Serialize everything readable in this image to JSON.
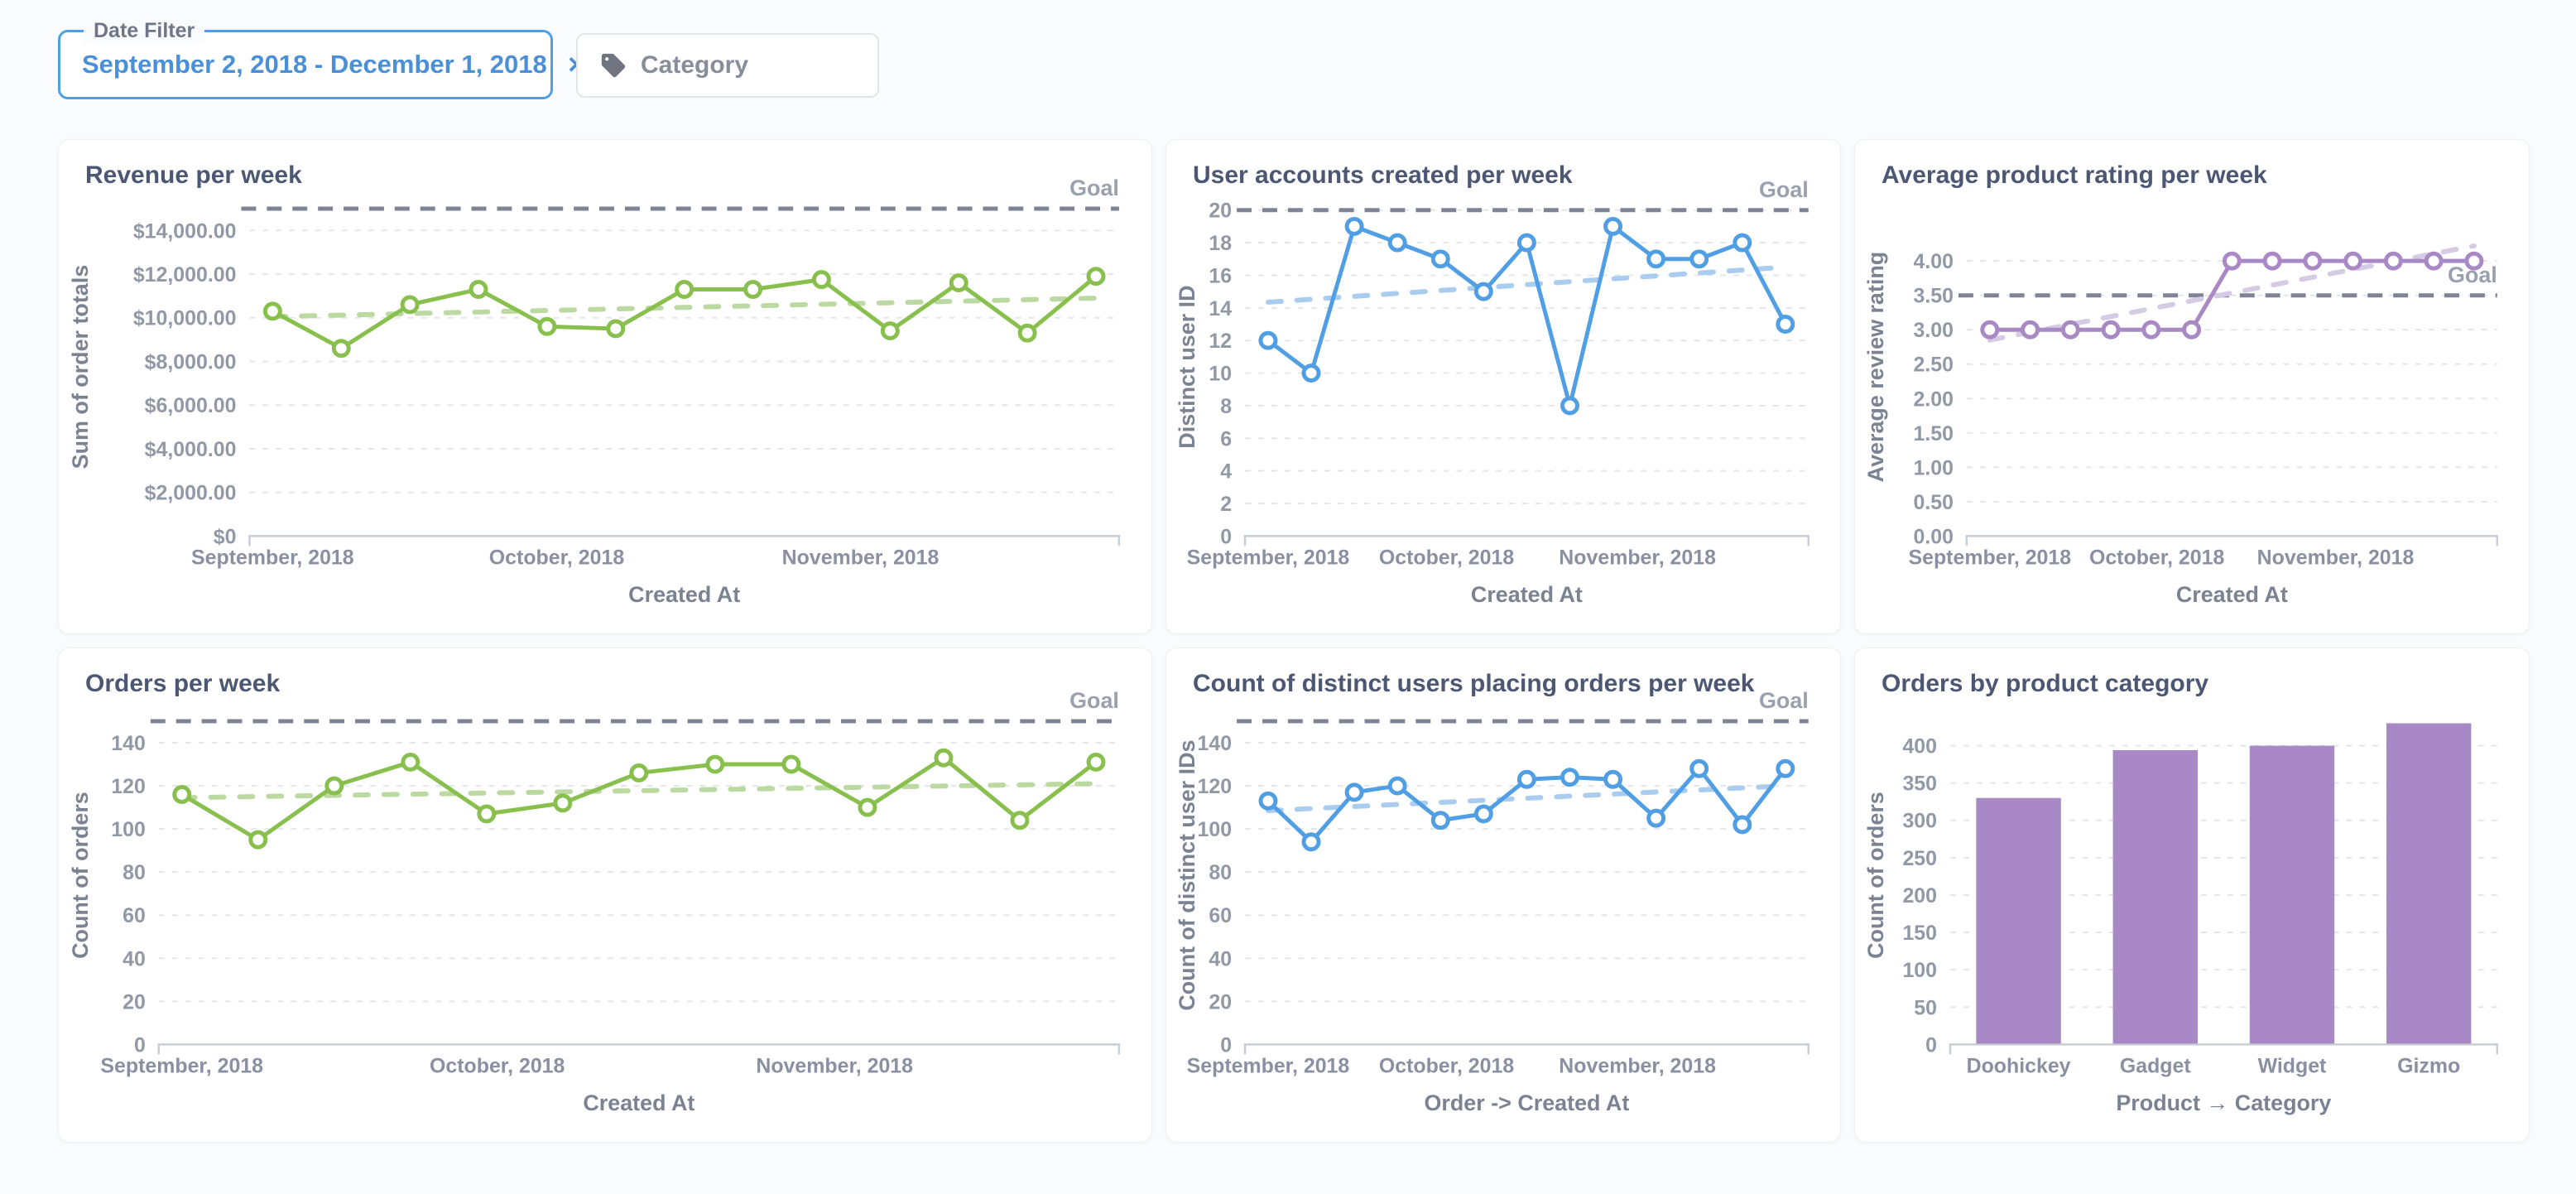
{
  "filters": {
    "date_filter": {
      "label": "Date Filter",
      "value": "September 2, 2018 - December 1, 2018",
      "clear_icon": "✕"
    },
    "category_filter": {
      "label": "Category",
      "icon": "tag-icon"
    }
  },
  "colors": {
    "green": "#88BF4D",
    "green_trend": "#BCD9A2",
    "blue": "#509EE3",
    "blue_trend": "#AACCEE",
    "purple": "#A989C5",
    "purple_trend": "#D5CBE5",
    "goal_line": "#7E8495",
    "goal_label": "#9AA0AE",
    "grid": "#E3E6EA",
    "axis": "#C9CDD4",
    "tick_label": "#9198A6",
    "axis_title": "#7B8291",
    "card_title": "#4C5773",
    "background": "#F9FBFD",
    "card_bg": "#FFFFFF",
    "filter_accent": "#509EE3"
  },
  "chart_data": [
    {
      "type": "line",
      "color": "green",
      "title": "Revenue per week",
      "xlabel": "Created At",
      "ylabel": "Sum of order totals",
      "goal": {
        "value": 15000,
        "label": "Goal"
      },
      "trend": [
        10050,
        10900
      ],
      "ylim": [
        0,
        15500
      ],
      "y_ticks": [
        {
          "v": 0,
          "label": "$0"
        },
        {
          "v": 2000,
          "label": "$2,000.00"
        },
        {
          "v": 4000,
          "label": "$4,000.00"
        },
        {
          "v": 6000,
          "label": "$6,000.00"
        },
        {
          "v": 8000,
          "label": "$8,000.00"
        },
        {
          "v": 10000,
          "label": "$10,000.00"
        },
        {
          "v": 12000,
          "label": "$12,000.00"
        },
        {
          "v": 14000,
          "label": "$14,000.00"
        }
      ],
      "x_months": [
        {
          "pos": 0.0,
          "label": "September, 2018"
        },
        {
          "pos": 0.345,
          "label": "October, 2018"
        },
        {
          "pos": 0.714,
          "label": "November, 2018"
        }
      ],
      "values": [
        10300,
        8600,
        10600,
        11300,
        9600,
        9500,
        11300,
        11300,
        11750,
        9400,
        11600,
        9300,
        11900
      ]
    },
    {
      "type": "line",
      "color": "blue",
      "title": "User accounts created per week",
      "xlabel": "Created At",
      "ylabel": "Distinct user ID",
      "goal": {
        "value": 20,
        "label": "Goal"
      },
      "trend": [
        14.35,
        16.5
      ],
      "ylim": [
        0,
        20.76
      ],
      "y_ticks": [
        {
          "v": 0,
          "label": "0"
        },
        {
          "v": 2,
          "label": "2"
        },
        {
          "v": 4,
          "label": "4"
        },
        {
          "v": 6,
          "label": "6"
        },
        {
          "v": 8,
          "label": "8"
        },
        {
          "v": 10,
          "label": "10"
        },
        {
          "v": 12,
          "label": "12"
        },
        {
          "v": 14,
          "label": "14"
        },
        {
          "v": 16,
          "label": "16"
        },
        {
          "v": 18,
          "label": "18"
        },
        {
          "v": 20,
          "label": "20"
        }
      ],
      "x_months": [
        {
          "pos": 0.0,
          "label": "September, 2018"
        },
        {
          "pos": 0.345,
          "label": "October, 2018"
        },
        {
          "pos": 0.714,
          "label": "November, 2018"
        }
      ],
      "values": [
        12,
        10,
        19,
        18,
        17,
        15,
        18,
        8,
        19,
        17,
        17,
        18,
        13
      ]
    },
    {
      "type": "line",
      "color": "purple",
      "title": "Average product rating per week",
      "xlabel": "Created At",
      "ylabel": "Average review rating",
      "goal": {
        "value": 3.5,
        "label": "Goal"
      },
      "trend": [
        2.85,
        4.22
      ],
      "ylim": [
        0,
        4.92
      ],
      "y_ticks": [
        {
          "v": 0,
          "label": "0.00"
        },
        {
          "v": 0.5,
          "label": "0.50"
        },
        {
          "v": 1,
          "label": "1.00"
        },
        {
          "v": 1.5,
          "label": "1.50"
        },
        {
          "v": 2,
          "label": "2.00"
        },
        {
          "v": 2.5,
          "label": "2.50"
        },
        {
          "v": 3,
          "label": "3.00"
        },
        {
          "v": 3.5,
          "label": "3.50"
        },
        {
          "v": 4,
          "label": "4.00"
        }
      ],
      "x_months": [
        {
          "pos": 0.0,
          "label": "September, 2018"
        },
        {
          "pos": 0.345,
          "label": "October, 2018"
        },
        {
          "pos": 0.714,
          "label": "November, 2018"
        }
      ],
      "values": [
        3,
        3,
        3,
        3,
        3,
        3,
        4,
        4,
        4,
        4,
        4,
        4,
        4
      ]
    },
    {
      "type": "line",
      "color": "green",
      "title": "Orders per week",
      "xlabel": "Created At",
      "ylabel": "Count of orders",
      "goal": {
        "value": 150,
        "label": "Goal"
      },
      "trend": [
        114.5,
        121
      ],
      "ylim": [
        0,
        157
      ],
      "y_ticks": [
        {
          "v": 0,
          "label": "0"
        },
        {
          "v": 20,
          "label": "20"
        },
        {
          "v": 40,
          "label": "40"
        },
        {
          "v": 60,
          "label": "60"
        },
        {
          "v": 80,
          "label": "80"
        },
        {
          "v": 100,
          "label": "100"
        },
        {
          "v": 120,
          "label": "120"
        },
        {
          "v": 140,
          "label": "140"
        }
      ],
      "x_months": [
        {
          "pos": 0.0,
          "label": "September, 2018"
        },
        {
          "pos": 0.345,
          "label": "October, 2018"
        },
        {
          "pos": 0.714,
          "label": "November, 2018"
        }
      ],
      "values": [
        116,
        95,
        120,
        131,
        107,
        112,
        126,
        130,
        130,
        110,
        133,
        104,
        131
      ]
    },
    {
      "type": "line",
      "color": "blue",
      "title": "Count of distinct users placing orders per week",
      "xlabel": "Order -> Created At",
      "ylabel": "Count of distinct user IDs",
      "goal": {
        "value": 150,
        "label": "Goal"
      },
      "trend": [
        108.5,
        120
      ],
      "ylim": [
        0,
        157
      ],
      "y_ticks": [
        {
          "v": 0,
          "label": "0"
        },
        {
          "v": 20,
          "label": "20"
        },
        {
          "v": 40,
          "label": "40"
        },
        {
          "v": 60,
          "label": "60"
        },
        {
          "v": 80,
          "label": "80"
        },
        {
          "v": 100,
          "label": "100"
        },
        {
          "v": 120,
          "label": "120"
        },
        {
          "v": 140,
          "label": "140"
        }
      ],
      "x_months": [
        {
          "pos": 0.0,
          "label": "September, 2018"
        },
        {
          "pos": 0.345,
          "label": "October, 2018"
        },
        {
          "pos": 0.714,
          "label": "November, 2018"
        }
      ],
      "values": [
        113,
        94,
        117,
        120,
        104,
        107,
        123,
        124,
        123,
        105,
        128,
        102,
        128
      ]
    },
    {
      "type": "bar",
      "color": "purple",
      "title": "Orders by product category",
      "xlabel": "Product → Category",
      "ylabel": "Count of orders",
      "goal": null,
      "trend": null,
      "ylim": [
        0,
        453
      ],
      "y_ticks": [
        {
          "v": 0,
          "label": "0"
        },
        {
          "v": 50,
          "label": "50"
        },
        {
          "v": 100,
          "label": "100"
        },
        {
          "v": 150,
          "label": "150"
        },
        {
          "v": 200,
          "label": "200"
        },
        {
          "v": 250,
          "label": "250"
        },
        {
          "v": 300,
          "label": "300"
        },
        {
          "v": 350,
          "label": "350"
        },
        {
          "v": 400,
          "label": "400"
        }
      ],
      "categories": [
        "Doohickey",
        "Gadget",
        "Widget",
        "Gizmo"
      ],
      "values": [
        330,
        394,
        400,
        430
      ]
    }
  ]
}
